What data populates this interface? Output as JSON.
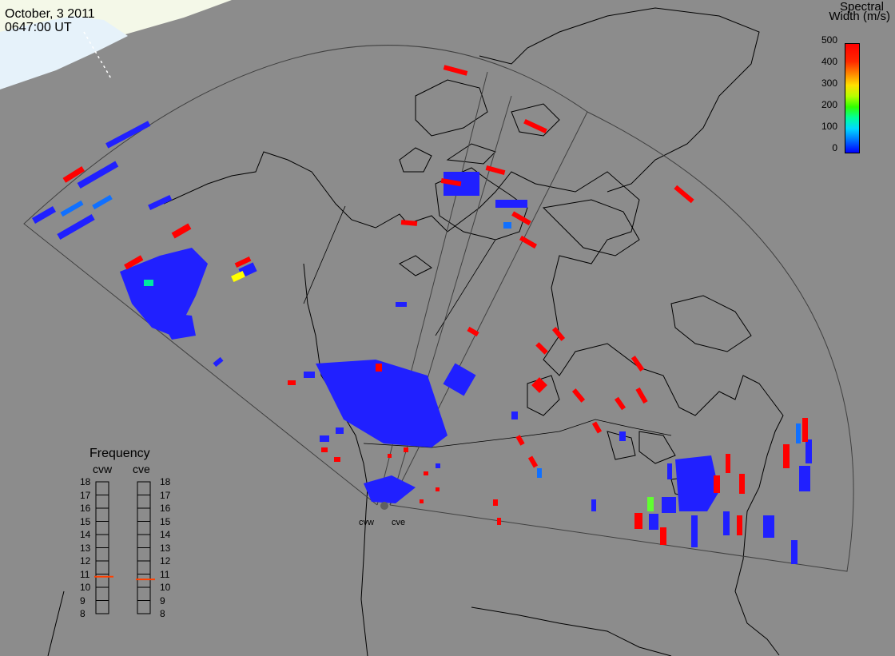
{
  "header": {
    "date": "October, 3 2011",
    "time": "0647:00 UT"
  },
  "colorbar": {
    "title_line1": "Spectral",
    "title_line2": "Width (m/s)",
    "ticks": [
      "500",
      "400",
      "300",
      "200",
      "100",
      "0"
    ],
    "range": [
      0,
      500
    ],
    "colors": [
      "#0000ff",
      "#00d8ff",
      "#30ff00",
      "#ffe000",
      "#ff8c00",
      "#ff0000"
    ]
  },
  "frequency_panel": {
    "title": "Frequency",
    "radars": [
      "cvw",
      "cve"
    ],
    "scale": [
      "18",
      "17",
      "16",
      "15",
      "14",
      "13",
      "12",
      "11",
      "10",
      "9",
      "8"
    ],
    "current": {
      "cvw": 10.8,
      "cve": 10.6
    },
    "marker_color": "#ff4000"
  },
  "radar_sites": {
    "west": "cvw",
    "east": "cve"
  },
  "colors": {
    "background": "#8c8c8c",
    "land_outline": "#000000",
    "fov_outline": "#404040",
    "daylight": "#e8f0f4",
    "low_width": "#2020ff",
    "high_width": "#ff0000"
  }
}
